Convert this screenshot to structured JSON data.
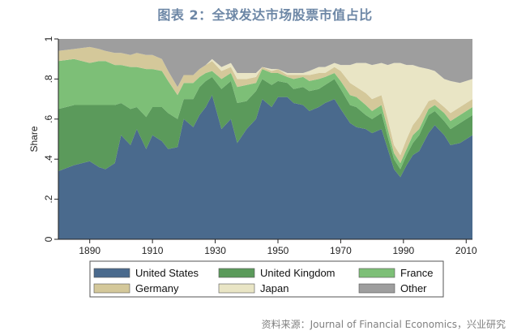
{
  "chart_data": {
    "type": "area",
    "stacked": true,
    "normalized": true,
    "title": "图表 2：全球发达市场股票市值占比",
    "ylabel": "Share",
    "xlabel": "",
    "xlim": [
      1880,
      2012
    ],
    "ylim": [
      0,
      1
    ],
    "x_ticks": [
      1890,
      1910,
      1930,
      1950,
      1970,
      1990,
      2010
    ],
    "y_ticks": [
      0,
      0.2,
      0.4,
      0.6,
      0.8,
      1
    ],
    "y_tick_labels": [
      "0",
      ".2",
      ".4",
      ".6",
      ".8",
      "1"
    ],
    "legend_position": "bottom",
    "grid": false,
    "x": [
      1880,
      1885,
      1890,
      1893,
      1895,
      1898,
      1900,
      1903,
      1905,
      1908,
      1910,
      1913,
      1915,
      1918,
      1920,
      1923,
      1925,
      1927,
      1929,
      1932,
      1935,
      1937,
      1940,
      1943,
      1945,
      1948,
      1950,
      1953,
      1955,
      1958,
      1960,
      1963,
      1965,
      1968,
      1970,
      1973,
      1975,
      1978,
      1980,
      1983,
      1985,
      1987,
      1989,
      1991,
      1993,
      1995,
      1998,
      2000,
      2003,
      2005,
      2008,
      2012
    ],
    "series": [
      {
        "name": "United States",
        "color": "#4a6a8d",
        "values": [
          0.34,
          0.37,
          0.39,
          0.36,
          0.35,
          0.38,
          0.52,
          0.47,
          0.55,
          0.45,
          0.52,
          0.49,
          0.45,
          0.46,
          0.6,
          0.56,
          0.62,
          0.66,
          0.72,
          0.55,
          0.6,
          0.48,
          0.55,
          0.6,
          0.7,
          0.66,
          0.71,
          0.71,
          0.68,
          0.67,
          0.64,
          0.66,
          0.68,
          0.7,
          0.65,
          0.58,
          0.56,
          0.55,
          0.53,
          0.55,
          0.45,
          0.35,
          0.31,
          0.37,
          0.42,
          0.44,
          0.53,
          0.57,
          0.52,
          0.47,
          0.48,
          0.52
        ]
      },
      {
        "name": "United Kingdom",
        "color": "#5b9a5b",
        "values": [
          0.65,
          0.67,
          0.67,
          0.67,
          0.67,
          0.67,
          0.68,
          0.65,
          0.66,
          0.61,
          0.66,
          0.66,
          0.63,
          0.6,
          0.7,
          0.7,
          0.76,
          0.79,
          0.81,
          0.75,
          0.79,
          0.68,
          0.69,
          0.74,
          0.8,
          0.77,
          0.79,
          0.78,
          0.75,
          0.76,
          0.74,
          0.75,
          0.77,
          0.8,
          0.75,
          0.67,
          0.66,
          0.62,
          0.6,
          0.63,
          0.51,
          0.4,
          0.35,
          0.42,
          0.48,
          0.52,
          0.62,
          0.64,
          0.59,
          0.55,
          0.58,
          0.62
        ]
      },
      {
        "name": "France",
        "color": "#7dbf77",
        "values": [
          0.89,
          0.9,
          0.88,
          0.89,
          0.89,
          0.87,
          0.87,
          0.86,
          0.86,
          0.85,
          0.85,
          0.84,
          0.79,
          0.72,
          0.78,
          0.78,
          0.81,
          0.83,
          0.84,
          0.8,
          0.83,
          0.76,
          0.77,
          0.78,
          0.85,
          0.83,
          0.83,
          0.81,
          0.8,
          0.81,
          0.79,
          0.8,
          0.81,
          0.83,
          0.79,
          0.72,
          0.71,
          0.67,
          0.64,
          0.67,
          0.55,
          0.43,
          0.38,
          0.45,
          0.52,
          0.55,
          0.65,
          0.67,
          0.63,
          0.59,
          0.62,
          0.66
        ]
      },
      {
        "name": "Germany",
        "color": "#d4c89a",
        "values": [
          0.94,
          0.95,
          0.96,
          0.95,
          0.94,
          0.93,
          0.93,
          0.92,
          0.93,
          0.92,
          0.92,
          0.9,
          0.84,
          0.76,
          0.82,
          0.82,
          0.85,
          0.87,
          0.89,
          0.84,
          0.86,
          0.8,
          0.8,
          0.81,
          0.86,
          0.84,
          0.85,
          0.82,
          0.82,
          0.82,
          0.82,
          0.83,
          0.83,
          0.86,
          0.84,
          0.78,
          0.76,
          0.73,
          0.7,
          0.72,
          0.6,
          0.47,
          0.42,
          0.5,
          0.57,
          0.61,
          0.69,
          0.7,
          0.66,
          0.63,
          0.66,
          0.7
        ]
      },
      {
        "name": "Japan",
        "color": "#e9e5c5",
        "values": [
          0.94,
          0.95,
          0.96,
          0.95,
          0.94,
          0.93,
          0.93,
          0.92,
          0.93,
          0.92,
          0.92,
          0.9,
          0.84,
          0.76,
          0.82,
          0.82,
          0.85,
          0.87,
          0.9,
          0.86,
          0.88,
          0.83,
          0.83,
          0.83,
          0.86,
          0.85,
          0.85,
          0.83,
          0.83,
          0.83,
          0.84,
          0.86,
          0.86,
          0.88,
          0.87,
          0.87,
          0.88,
          0.88,
          0.87,
          0.88,
          0.87,
          0.88,
          0.88,
          0.87,
          0.87,
          0.86,
          0.85,
          0.84,
          0.8,
          0.79,
          0.78,
          0.8
        ]
      },
      {
        "name": "Other",
        "color": "#9e9e9e",
        "values": [
          1,
          1,
          1,
          1,
          1,
          1,
          1,
          1,
          1,
          1,
          1,
          1,
          1,
          1,
          1,
          1,
          1,
          1,
          1,
          1,
          1,
          1,
          1,
          1,
          1,
          1,
          1,
          1,
          1,
          1,
          1,
          1,
          1,
          1,
          1,
          1,
          1,
          1,
          1,
          1,
          1,
          1,
          1,
          1,
          1,
          1,
          1,
          1,
          1,
          1,
          1,
          1
        ]
      }
    ],
    "value_encoding": "cumulative_upper_boundary"
  },
  "source": "资料来源：Journal of Financial Economics，兴业研究"
}
